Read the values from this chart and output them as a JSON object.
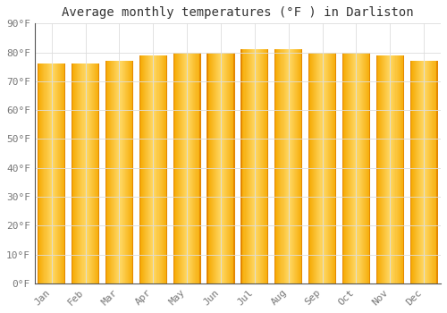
{
  "title": "Average monthly temperatures (°F ) in Darliston",
  "months": [
    "Jan",
    "Feb",
    "Mar",
    "Apr",
    "May",
    "Jun",
    "Jul",
    "Aug",
    "Sep",
    "Oct",
    "Nov",
    "Dec"
  ],
  "values": [
    76,
    76,
    77,
    79,
    80,
    80,
    81,
    81,
    80,
    80,
    79,
    77
  ],
  "bar_color_left": "#F5A800",
  "bar_color_center": "#FFD966",
  "bar_color_right": "#E8900A",
  "background_color": "#FFFFFF",
  "ylim": [
    0,
    90
  ],
  "yticks": [
    0,
    10,
    20,
    30,
    40,
    50,
    60,
    70,
    80,
    90
  ],
  "grid_color": "#DDDDDD",
  "title_fontsize": 10,
  "tick_fontsize": 8,
  "tick_color": "#777777"
}
